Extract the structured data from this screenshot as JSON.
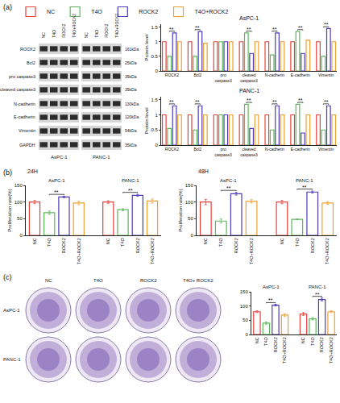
{
  "panel_labels": [
    "(a)",
    "(b)",
    "(c)"
  ],
  "blot": {
    "conditions": [
      "NC",
      "T4O",
      "ROCK2",
      "T4O+ROCK2"
    ],
    "cell_lines": [
      "AsPC-1",
      "PANC-1"
    ],
    "rows": [
      {
        "protein": "ROCK2",
        "size": "161kDa"
      },
      {
        "protein": "Bcl2",
        "size": "25kDa"
      },
      {
        "protein": "pro caspase3",
        "size": "35kDa"
      },
      {
        "protein": "cleaved caspase3",
        "size": "35kDa"
      },
      {
        "protein": "N-cadherin",
        "size": "130kDa"
      },
      {
        "protein": "E-cadherin",
        "size": "120kDa"
      },
      {
        "protein": "Vimentin",
        "size": "54kDa"
      },
      {
        "protein": "GAPDH",
        "size": "35kDa"
      }
    ]
  },
  "colony": {
    "columns": [
      "NC",
      "T4O",
      "ROCK2",
      "T4O+ ROCK2"
    ],
    "rows": [
      "AsPC-1",
      "PANC-1"
    ]
  },
  "chart_data": [
    {
      "type": "bar",
      "title": "AsPC-1",
      "ylabel": "Protein level",
      "categories": [
        "ROCK2",
        "Bcl2",
        "pro caspase3",
        "cleaved caspase3",
        "N-cadherin",
        "E-cadherin",
        "Vimentin"
      ],
      "series": [
        {
          "name": "NC",
          "color": "#e8413c",
          "values": [
            1,
            1,
            1,
            1,
            1,
            1,
            1
          ]
        },
        {
          "name": "T4O",
          "color": "#5cb85c",
          "values": [
            0.5,
            0.5,
            1,
            1.3,
            0.55,
            1.35,
            0.5
          ]
        },
        {
          "name": "ROCK2",
          "color": "#4b3cb8",
          "values": [
            1.3,
            1.35,
            1,
            0.6,
            1.3,
            0.6,
            1.45
          ]
        },
        {
          "name": "T4O+ROCK2",
          "color": "#f0a030",
          "values": [
            1,
            0.95,
            1,
            1,
            1,
            1.05,
            1
          ]
        }
      ],
      "ylim": [
        0,
        1.6
      ],
      "yticks": [
        0,
        0.5,
        1,
        1.5
      ],
      "legend": "top",
      "annotations": [
        {
          "category": "ROCK2",
          "from": "T4O",
          "to": "ROCK2",
          "text": "**"
        },
        {
          "category": "Bcl2",
          "from": "T4O",
          "to": "ROCK2",
          "text": "**"
        },
        {
          "category": "cleaved caspase3",
          "from": "T4O",
          "to": "ROCK2",
          "text": "**"
        },
        {
          "category": "N-cadherin",
          "from": "T4O",
          "to": "ROCK2",
          "text": "**"
        },
        {
          "category": "E-cadherin",
          "from": "T4O",
          "to": "ROCK2",
          "text": "**"
        },
        {
          "category": "Vimentin",
          "from": "T4O",
          "to": "ROCK2",
          "text": "**"
        }
      ]
    },
    {
      "type": "bar",
      "title": "PANC-1",
      "ylabel": "Protein level",
      "categories": [
        "ROCK2",
        "Bcl2",
        "pro caspase3",
        "cleaved caspase3",
        "N-cadherin",
        "E-cadherin",
        "Vimentin"
      ],
      "series": [
        {
          "name": "NC",
          "color": "#e8413c",
          "values": [
            1,
            1,
            1,
            1,
            1,
            1,
            1
          ]
        },
        {
          "name": "T4O",
          "color": "#5cb85c",
          "values": [
            0.55,
            0.5,
            1,
            1.35,
            0.5,
            1.35,
            0.5
          ]
        },
        {
          "name": "ROCK2",
          "color": "#4b3cb8",
          "values": [
            1.3,
            1.3,
            1,
            0.55,
            1.3,
            0.4,
            1.3
          ]
        },
        {
          "name": "T4O+ROCK2",
          "color": "#f0a030",
          "values": [
            1,
            1,
            1,
            1,
            1,
            1,
            1
          ]
        }
      ],
      "ylim": [
        0,
        1.6
      ],
      "yticks": [
        0,
        0.5,
        1,
        1.5
      ],
      "legend": "top",
      "annotations": [
        {
          "category": "ROCK2",
          "from": "T4O",
          "to": "ROCK2",
          "text": "**"
        },
        {
          "category": "Bcl2",
          "from": "T4O",
          "to": "ROCK2",
          "text": "**"
        },
        {
          "category": "cleaved caspase3",
          "from": "T4O",
          "to": "ROCK2",
          "text": "**"
        },
        {
          "category": "N-cadherin",
          "from": "T4O",
          "to": "ROCK2",
          "text": "**"
        },
        {
          "category": "E-cadherin",
          "from": "T4O",
          "to": "ROCK2",
          "text": "**"
        },
        {
          "category": "Vimentin",
          "from": "T4O",
          "to": "ROCK2",
          "text": "**"
        }
      ]
    },
    {
      "type": "bar",
      "title": "24H",
      "ylabel": "Proliferation rate(%)",
      "categories": [
        "AsPC-1",
        "PANC-1"
      ],
      "series": [
        {
          "name": "NC",
          "color": "#e8413c",
          "values": [
            100,
            100
          ],
          "errors": [
            5,
            4
          ]
        },
        {
          "name": "T4O",
          "color": "#5cb85c",
          "values": [
            68,
            77
          ],
          "errors": [
            5,
            3
          ]
        },
        {
          "name": "ROCK2",
          "color": "#4b3cb8",
          "values": [
            115,
            120
          ],
          "errors": [
            2,
            3
          ]
        },
        {
          "name": "T4O+ROCK2",
          "color": "#f0a030",
          "values": [
            97,
            103
          ],
          "errors": [
            5,
            6
          ]
        }
      ],
      "ylim": [
        0,
        150
      ],
      "yticks": [
        0,
        50,
        100,
        150
      ],
      "annotations": [
        {
          "category": "AsPC-1",
          "from": "T4O",
          "to": "ROCK2",
          "text": "**"
        },
        {
          "category": "PANC-1",
          "from": "T4O",
          "to": "ROCK2",
          "text": "**"
        }
      ]
    },
    {
      "type": "bar",
      "title": "48H",
      "ylabel": "Proliferation rate(%)",
      "categories": [
        "AsPC-1",
        "PANC-1"
      ],
      "series": [
        {
          "name": "NC",
          "color": "#e8413c",
          "values": [
            100,
            100
          ],
          "errors": [
            8,
            5
          ]
        },
        {
          "name": "T4O",
          "color": "#5cb85c",
          "values": [
            43,
            48
          ],
          "errors": [
            6,
            1
          ]
        },
        {
          "name": "ROCK2",
          "color": "#4b3cb8",
          "values": [
            125,
            130
          ],
          "errors": [
            4,
            3
          ]
        },
        {
          "name": "T4O+ROCK2",
          "color": "#f0a030",
          "values": [
            102,
            97
          ],
          "errors": [
            5,
            4
          ]
        }
      ],
      "ylim": [
        0,
        150
      ],
      "yticks": [
        0,
        50,
        100,
        150
      ],
      "annotations": [
        {
          "category": "AsPC-1",
          "from": "T4O",
          "to": "ROCK2",
          "text": "**"
        },
        {
          "category": "PANC-1",
          "from": "T4O",
          "to": "ROCK2",
          "text": "**"
        }
      ]
    },
    {
      "type": "bar",
      "categories": [
        "AsPC-1",
        "PANC-1"
      ],
      "series": [
        {
          "name": "NC",
          "color": "#e8413c",
          "values": [
            80,
            72
          ],
          "errors": [
            3,
            5
          ]
        },
        {
          "name": "T4O",
          "color": "#5cb85c",
          "values": [
            40,
            55
          ],
          "errors": [
            4,
            4
          ]
        },
        {
          "name": "ROCK2",
          "color": "#4b3cb8",
          "values": [
            103,
            123
          ],
          "errors": [
            3,
            5
          ]
        },
        {
          "name": "T4O+ROCK2",
          "color": "#f0a030",
          "values": [
            68,
            80
          ],
          "errors": [
            5,
            3
          ]
        }
      ],
      "ylim": [
        0,
        150
      ],
      "yticks": [
        0,
        50,
        100,
        150
      ],
      "annotations": [
        {
          "category": "AsPC-1",
          "from": "T4O",
          "to": "ROCK2",
          "text": "**"
        },
        {
          "category": "PANC-1",
          "from": "T4O",
          "to": "ROCK2",
          "text": "**"
        }
      ]
    }
  ]
}
